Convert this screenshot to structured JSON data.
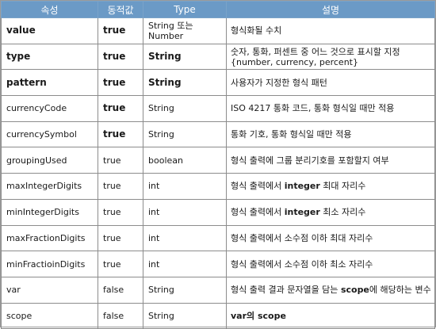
{
  "header": {
    "col1": "속성",
    "col2": "동적값",
    "col3": "Type",
    "col4": "설명"
  },
  "rows": [
    {
      "name": "value",
      "dynamic": "true",
      "type": "String 또는 Number",
      "desc": "형식화될 수치",
      "name_bold": true,
      "dynamic_bold": true,
      "type_bold": false
    },
    {
      "name": "type",
      "dynamic": "true",
      "type": "String",
      "desc": "숫자, 통화, 퍼센트 중 어느 것으로 표시할 지정{number, currency, percent}",
      "name_bold": true,
      "dynamic_bold": true,
      "type_bold": true
    },
    {
      "name": "pattern",
      "dynamic": "true",
      "type": "String",
      "desc": "사용자가 지정한 형식 패턴",
      "name_bold": true,
      "dynamic_bold": true,
      "type_bold": true
    },
    {
      "name": "currencyCode",
      "dynamic": "true",
      "type": "String",
      "desc": "ISO 4217 통화 코드, 통화 형식일 때만 적용",
      "name_bold": false,
      "dynamic_bold": true,
      "type_bold": false
    },
    {
      "name": "currencySymbol",
      "dynamic": "true",
      "type": "String",
      "desc": "통화 기호, 통화 형식일 때만 적용",
      "name_bold": false,
      "dynamic_bold": true,
      "type_bold": false
    },
    {
      "name": "groupingUsed",
      "dynamic": "true",
      "type": "boolean",
      "desc": "형식 출력에 그룹 분리기호를 포함할지 여부",
      "name_bold": false,
      "dynamic_bold": false,
      "type_bold": false
    },
    {
      "name": "maxIntegerDigits",
      "dynamic": "true",
      "type": "int",
      "desc_pre": "형식 출력에서 ",
      "desc_em": "integer",
      "desc_post": " 최대 자리수",
      "name_bold": false,
      "dynamic_bold": false,
      "type_bold": false
    },
    {
      "name": "minIntegerDigits",
      "dynamic": "true",
      "type": "int",
      "desc_pre": "형식 출력에서 ",
      "desc_em": "integer",
      "desc_post": " 최소 자리수",
      "name_bold": false,
      "dynamic_bold": false,
      "type_bold": false
    },
    {
      "name": "maxFractionDigits",
      "dynamic": "true",
      "type": "int",
      "desc": "형식 출력에서 소수점 이하 최대 자리수",
      "name_bold": false,
      "dynamic_bold": false,
      "type_bold": false
    },
    {
      "name": "minFractioinDigits",
      "dynamic": "true",
      "type": "int",
      "desc": "형식 출력에서 소수점 이하 최소 자리수",
      "name_bold": false,
      "dynamic_bold": false,
      "type_bold": false
    },
    {
      "name": "var",
      "dynamic": "false",
      "type": "String",
      "desc_pre": "형식 출력 결과 문자열을 담는 ",
      "desc_em": "scope",
      "desc_post": "에 해당하는 변수",
      "name_bold": false,
      "dynamic_bold": false,
      "type_bold": false
    },
    {
      "name": "scope",
      "dynamic": "false",
      "type": "String",
      "desc_pre": "",
      "desc_em": "var",
      "desc_post": "의 ",
      "desc_em2": "scope",
      "name_bold": false,
      "dynamic_bold": false,
      "type_bold": false
    }
  ]
}
